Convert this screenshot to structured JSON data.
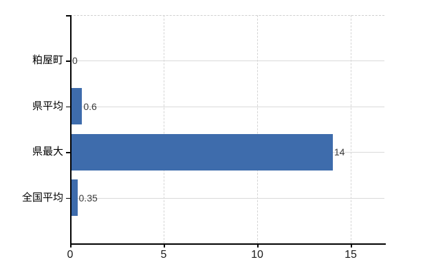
{
  "window": {
    "background": "#ffffff"
  },
  "chart_data": {
    "type": "bar",
    "orientation": "horizontal",
    "title": "",
    "xlabel": "",
    "ylabel": "",
    "categories": [
      "粕屋町",
      "県平均",
      "県最大",
      "全国平均"
    ],
    "values": [
      0,
      0.6,
      14,
      0.35
    ],
    "value_labels": [
      "0",
      "0.6",
      "14",
      "0.35"
    ],
    "x_ticks": [
      0,
      5,
      10,
      15
    ],
    "x_tick_labels": [
      "0",
      "5",
      "10",
      "15"
    ],
    "xlim": [
      0,
      16.8
    ],
    "grid": "on",
    "legend": "none",
    "colors": {
      "bar": "#3e6cac",
      "axis": "#000000",
      "gridline_solid": "#d9d9d9",
      "gridline_dashed": "#d4d4d4",
      "category_label": "#000000",
      "tick_label": "#1a1a1a",
      "value_label": "#3a3a3a",
      "background": "#ffffff"
    }
  }
}
